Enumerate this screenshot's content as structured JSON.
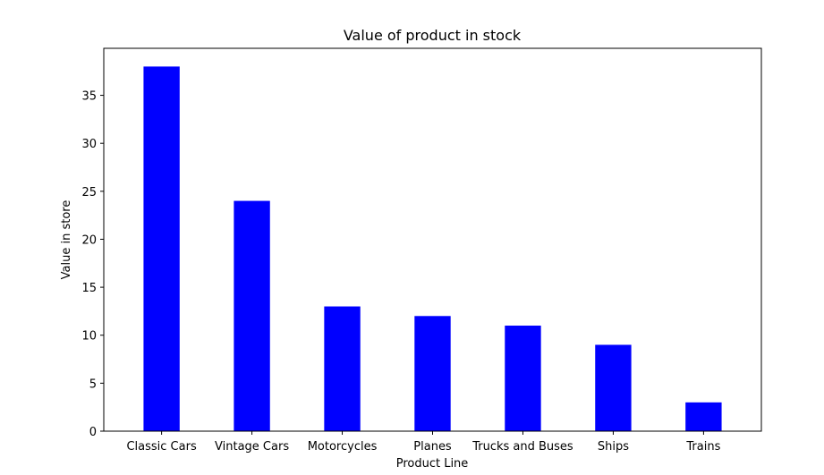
{
  "chart_data": {
    "type": "bar",
    "title": "Value of product in stock",
    "xlabel": "Product Line",
    "ylabel": "Value in store",
    "categories": [
      "Classic Cars",
      "Vintage Cars",
      "Motorcycles",
      "Planes",
      "Trucks and Buses",
      "Ships",
      "Trains"
    ],
    "values": [
      38,
      24,
      13,
      12,
      11,
      9,
      3
    ],
    "ylim": [
      0,
      39.9
    ],
    "yticks": [
      0,
      5,
      10,
      15,
      20,
      25,
      30,
      35
    ],
    "grid": false,
    "legend": "none",
    "bar_color": "#0000ff",
    "axis_color": "#000000"
  }
}
